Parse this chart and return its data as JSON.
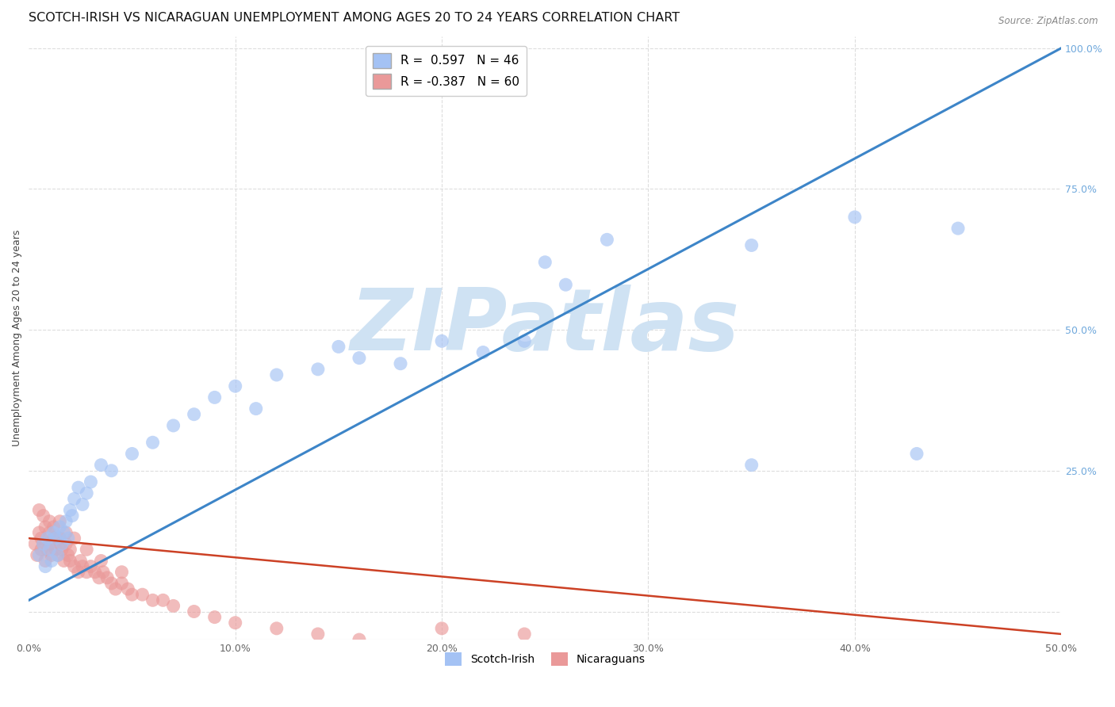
{
  "title": "SCOTCH-IRISH VS NICARAGUAN UNEMPLOYMENT AMONG AGES 20 TO 24 YEARS CORRELATION CHART",
  "source": "Source: ZipAtlas.com",
  "ylabel": "Unemployment Among Ages 20 to 24 years",
  "xlabel_ticks": [
    "0.0%",
    "10.0%",
    "20.0%",
    "30.0%",
    "40.0%",
    "50.0%"
  ],
  "xlabel_vals": [
    0.0,
    0.1,
    0.2,
    0.3,
    0.4,
    0.5
  ],
  "ylabel_right_ticks": [
    "100.0%",
    "75.0%",
    "50.0%",
    "25.0%"
  ],
  "ylabel_right_vals": [
    1.0,
    0.75,
    0.5,
    0.25
  ],
  "blue_R": 0.597,
  "blue_N": 46,
  "pink_R": -0.387,
  "pink_N": 60,
  "blue_color": "#a4c2f4",
  "pink_color": "#ea9999",
  "blue_line_color": "#3d85c8",
  "pink_line_color": "#cc4125",
  "watermark": "ZIPatlas",
  "watermark_color": "#cfe2f3",
  "blue_scatter_x": [
    0.005,
    0.007,
    0.008,
    0.009,
    0.01,
    0.011,
    0.012,
    0.013,
    0.014,
    0.015,
    0.016,
    0.017,
    0.018,
    0.019,
    0.02,
    0.021,
    0.022,
    0.024,
    0.026,
    0.028,
    0.03,
    0.035,
    0.04,
    0.05,
    0.06,
    0.07,
    0.08,
    0.09,
    0.1,
    0.11,
    0.12,
    0.14,
    0.15,
    0.16,
    0.18,
    0.2,
    0.22,
    0.24,
    0.25,
    0.26,
    0.28,
    0.35,
    0.4,
    0.45,
    0.35,
    0.43
  ],
  "blue_scatter_y": [
    0.1,
    0.12,
    0.08,
    0.13,
    0.11,
    0.09,
    0.14,
    0.13,
    0.1,
    0.15,
    0.12,
    0.14,
    0.16,
    0.13,
    0.18,
    0.17,
    0.2,
    0.22,
    0.19,
    0.21,
    0.23,
    0.26,
    0.25,
    0.28,
    0.3,
    0.33,
    0.35,
    0.38,
    0.4,
    0.36,
    0.42,
    0.43,
    0.47,
    0.45,
    0.44,
    0.48,
    0.46,
    0.48,
    0.62,
    0.58,
    0.66,
    0.65,
    0.7,
    0.68,
    0.26,
    0.28
  ],
  "pink_scatter_x": [
    0.003,
    0.004,
    0.005,
    0.006,
    0.006,
    0.007,
    0.008,
    0.008,
    0.009,
    0.01,
    0.01,
    0.011,
    0.012,
    0.013,
    0.014,
    0.015,
    0.015,
    0.016,
    0.017,
    0.018,
    0.019,
    0.02,
    0.02,
    0.022,
    0.024,
    0.025,
    0.026,
    0.028,
    0.03,
    0.032,
    0.034,
    0.036,
    0.038,
    0.04,
    0.042,
    0.045,
    0.048,
    0.05,
    0.055,
    0.06,
    0.065,
    0.07,
    0.08,
    0.09,
    0.1,
    0.12,
    0.14,
    0.16,
    0.2,
    0.24,
    0.005,
    0.007,
    0.01,
    0.012,
    0.015,
    0.018,
    0.022,
    0.028,
    0.035,
    0.045
  ],
  "pink_scatter_y": [
    0.12,
    0.1,
    0.14,
    0.11,
    0.13,
    0.12,
    0.09,
    0.15,
    0.11,
    0.14,
    0.12,
    0.1,
    0.13,
    0.11,
    0.1,
    0.13,
    0.12,
    0.11,
    0.09,
    0.12,
    0.1,
    0.11,
    0.09,
    0.08,
    0.07,
    0.09,
    0.08,
    0.07,
    0.08,
    0.07,
    0.06,
    0.07,
    0.06,
    0.05,
    0.04,
    0.05,
    0.04,
    0.03,
    0.03,
    0.02,
    0.02,
    0.01,
    0.0,
    -0.01,
    -0.02,
    -0.03,
    -0.04,
    -0.05,
    -0.03,
    -0.04,
    0.18,
    0.17,
    0.16,
    0.15,
    0.16,
    0.14,
    0.13,
    0.11,
    0.09,
    0.07
  ],
  "blue_line_x": [
    0.0,
    0.5
  ],
  "blue_line_y": [
    0.02,
    1.0
  ],
  "pink_line_x": [
    0.0,
    0.5
  ],
  "pink_line_y": [
    0.13,
    -0.04
  ],
  "xlim": [
    0.0,
    0.5
  ],
  "ylim": [
    -0.05,
    1.02
  ],
  "grid_color": "#dddddd",
  "bg_color": "#ffffff",
  "title_fontsize": 11.5,
  "axis_fontsize": 9,
  "right_axis_color": "#6fa8dc",
  "legend_fontsize": 11
}
